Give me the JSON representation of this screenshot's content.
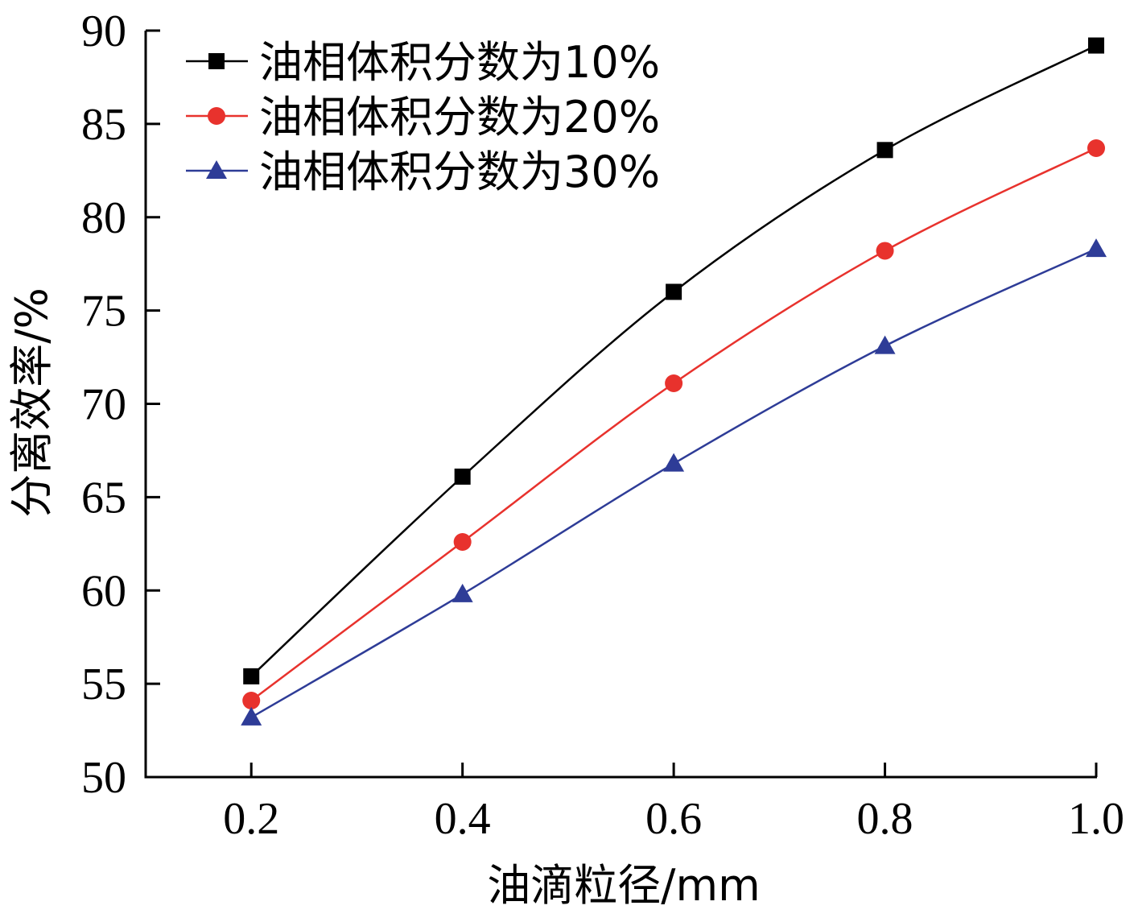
{
  "chart_data": {
    "type": "line",
    "title": "",
    "xlabel": "油滴粒径/mm",
    "ylabel": "分离效率/%",
    "x": [
      0.2,
      0.4,
      0.6,
      0.8,
      1.0
    ],
    "x_tick_labels": [
      "0.2",
      "0.4",
      "0.6",
      "0.8",
      "1.0"
    ],
    "y_ticks": [
      50,
      55,
      60,
      65,
      70,
      75,
      80,
      85,
      90
    ],
    "xlim": [
      0.1,
      1.0
    ],
    "ylim": [
      50,
      90
    ],
    "grid": false,
    "legend_position": "top-left",
    "series": [
      {
        "name": "油相体积分数为10%",
        "values": [
          55.4,
          66.1,
          76.0,
          83.6,
          89.2
        ],
        "color": "#000000",
        "marker": "square"
      },
      {
        "name": "油相体积分数为20%",
        "values": [
          54.1,
          62.6,
          71.1,
          78.2,
          83.7
        ],
        "color": "#e8322d",
        "marker": "circle"
      },
      {
        "name": "油相体积分数为30%",
        "values": [
          53.2,
          59.8,
          66.8,
          73.1,
          78.3
        ],
        "color": "#2e3c97",
        "marker": "triangle"
      }
    ]
  }
}
